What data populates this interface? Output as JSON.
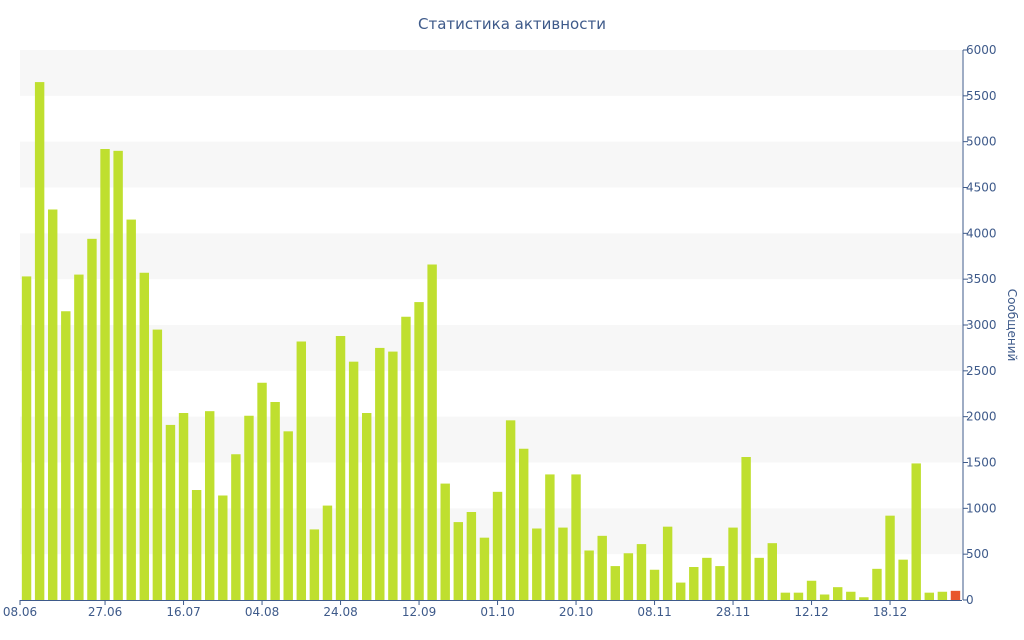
{
  "chart_data": {
    "type": "bar",
    "title": "Статистика активности",
    "ylabel": "Сообщений",
    "xlabel": "",
    "ylim": [
      0,
      6000
    ],
    "y_ticks": [
      0,
      500,
      1000,
      1500,
      2000,
      2500,
      3000,
      3500,
      4000,
      4500,
      5000,
      5500,
      6000
    ],
    "y_axis_position": "right",
    "x_tick_labels": [
      {
        "label": "08.06",
        "index": 0
      },
      {
        "label": "27.06",
        "index": 6
      },
      {
        "label": "16.07",
        "index": 12
      },
      {
        "label": "04.08",
        "index": 18
      },
      {
        "label": "24.08",
        "index": 24
      },
      {
        "label": "12.09",
        "index": 30
      },
      {
        "label": "01.10",
        "index": 36
      },
      {
        "label": "20.10",
        "index": 42
      },
      {
        "label": "08.11",
        "index": 48
      },
      {
        "label": "28.11",
        "index": 54
      },
      {
        "label": "12.12",
        "index": 60
      },
      {
        "label": "18.12",
        "index": 66
      }
    ],
    "values": [
      3530,
      5650,
      4260,
      3150,
      3550,
      3940,
      4920,
      4900,
      4150,
      3570,
      2950,
      1910,
      2040,
      1200,
      2060,
      1140,
      1590,
      2010,
      2370,
      2160,
      1840,
      2820,
      770,
      1030,
      2880,
      2600,
      2040,
      2750,
      2710,
      3090,
      3250,
      3660,
      1270,
      850,
      960,
      680,
      1180,
      1960,
      1650,
      780,
      1370,
      790,
      1370,
      540,
      700,
      370,
      510,
      610,
      330,
      800,
      190,
      360,
      460,
      370,
      790,
      1560,
      460,
      620,
      80,
      80,
      210,
      60,
      140,
      90,
      30,
      340,
      920,
      440,
      1490,
      80,
      90,
      100
    ],
    "highlight_last": true,
    "bar_color": "#bfdf2f",
    "highlight_color": "#e8552b",
    "band_color": "#f7f7f7",
    "text_color": "#3e5a8a",
    "grid": "alternating-bands"
  }
}
